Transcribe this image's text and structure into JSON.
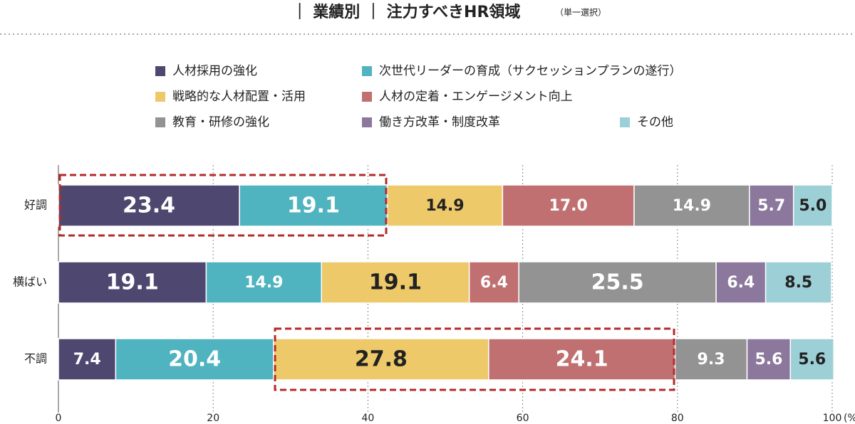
{
  "chart_data": {
    "type": "stacked_bar_horizontal",
    "title": "｜ 業績別 ｜ 注力すべきHR領域",
    "subtitle": "（単一選択）",
    "xlabel": "(%)",
    "categories": [
      "好調",
      "横ばい",
      "不調"
    ],
    "series": [
      {
        "name": "人材採用の強化",
        "color": "#4e4770",
        "label_color": "#ffffff",
        "values": [
          23.4,
          19.1,
          7.4
        ],
        "value_labels": [
          "23.4",
          "19.1",
          "7.4"
        ]
      },
      {
        "name": "次世代リーダーの育成（サクセッションプランの遂行）",
        "color": "#4fb3c0",
        "label_color": "#ffffff",
        "values": [
          19.1,
          14.9,
          20.4
        ],
        "value_labels": [
          "19.1",
          "14.9",
          "20.4"
        ]
      },
      {
        "name": "戦略的な人材配置・活用",
        "color": "#edc96a",
        "label_color": "#222222",
        "values": [
          14.9,
          19.1,
          27.8
        ],
        "value_labels": [
          "14.9",
          "19.1",
          "27.8"
        ]
      },
      {
        "name": "人材の定着・エンゲージメント向上",
        "color": "#c07070",
        "label_color": "#ffffff",
        "values": [
          17.0,
          6.4,
          24.1
        ],
        "value_labels": [
          "17.0",
          "6.4",
          "24.1"
        ]
      },
      {
        "name": "教育・研修の強化",
        "color": "#939393",
        "label_color": "#ffffff",
        "values": [
          14.9,
          25.5,
          9.3
        ],
        "value_labels": [
          "14.9",
          "25.5",
          "9.3"
        ]
      },
      {
        "name": "働き方改革・制度改革",
        "color": "#8b789c",
        "label_color": "#ffffff",
        "values": [
          5.7,
          6.4,
          5.6
        ],
        "value_labels": [
          "5.7",
          "6.4",
          "5.6"
        ]
      },
      {
        "name": "その他",
        "color": "#9ccfd6",
        "label_color": "#222222",
        "values": [
          5.0,
          8.5,
          5.6
        ],
        "value_labels": [
          "5.0",
          "8.5",
          "5.6"
        ]
      }
    ],
    "xlim": [
      0,
      100
    ],
    "xticks": [
      0,
      20,
      40,
      60,
      80,
      100
    ],
    "grid": true
  }
}
